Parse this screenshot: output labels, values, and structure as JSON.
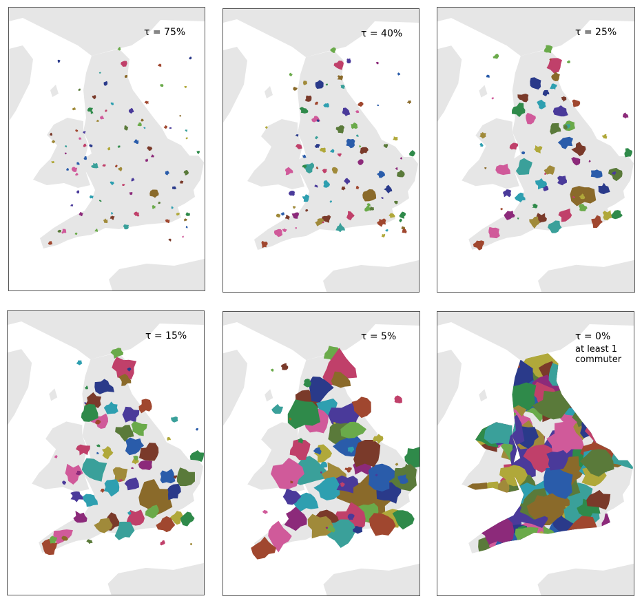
{
  "panels": [
    {
      "tau_label": "τ = 75%",
      "note_lines": []
    },
    {
      "tau_label": "τ = 40%",
      "note_lines": []
    },
    {
      "tau_label": "τ = 25%",
      "note_lines": []
    },
    {
      "tau_label": "τ = 15%",
      "note_lines": []
    },
    {
      "tau_label": "τ = 5%",
      "note_lines": []
    },
    {
      "tau_label": "τ = 0%",
      "note_lines": [
        "at least 1",
        "commuter"
      ]
    }
  ],
  "colors": {
    "land": "#e6e6e6",
    "border": "#555555",
    "region_palette": [
      "#2a5caa",
      "#a0472f",
      "#2e9fb0",
      "#6aaa4a",
      "#8c2a7a",
      "#b0a83a",
      "#2f8a4a",
      "#4a3a9a",
      "#c0406a",
      "#8a6a2a",
      "#3aa09a",
      "#5a7a3a",
      "#d05a9a",
      "#7a3a2a",
      "#2a3a8a",
      "#a08a3a"
    ]
  }
}
